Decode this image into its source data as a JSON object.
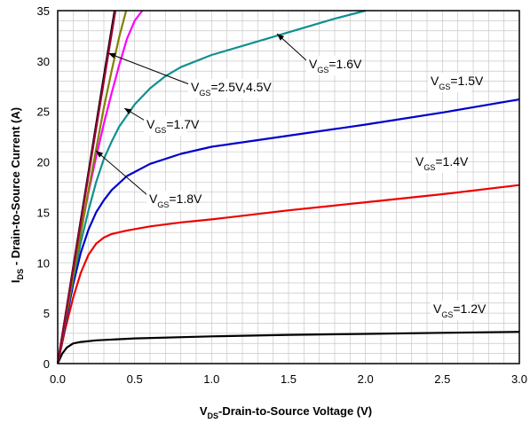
{
  "chart_data": {
    "type": "line",
    "title": "",
    "xlabel_main": "V",
    "xlabel_sub": "DS",
    "xlabel_rest": "-Drain-to-Source Voltage (V)",
    "ylabel_main": "I",
    "ylabel_sub": "DS",
    "ylabel_rest": " - Drain-to-Source Current (A)",
    "xlim": [
      0,
      3.0
    ],
    "ylim": [
      0,
      35
    ],
    "xticks": [
      "0.0",
      "0.5",
      "1.0",
      "1.5",
      "2.0",
      "2.5",
      "3.0"
    ],
    "xtick_values": [
      0,
      0.5,
      1.0,
      1.5,
      2.0,
      2.5,
      3.0
    ],
    "yticks": [
      "0",
      "5",
      "10",
      "15",
      "20",
      "25",
      "30",
      "35"
    ],
    "ytick_values": [
      0,
      5,
      10,
      15,
      20,
      25,
      30,
      35
    ],
    "grid": true,
    "series": [
      {
        "name": "VGS=1.2V",
        "color": "#000000",
        "x": [
          0,
          0.03,
          0.06,
          0.1,
          0.15,
          0.25,
          0.5,
          1.0,
          1.5,
          2.0,
          2.5,
          3.0
        ],
        "y": [
          0,
          1.0,
          1.6,
          2.0,
          2.15,
          2.3,
          2.5,
          2.7,
          2.85,
          2.95,
          3.05,
          3.15
        ]
      },
      {
        "name": "VGS=1.4V",
        "color": "#ee0000",
        "x": [
          0,
          0.05,
          0.1,
          0.15,
          0.2,
          0.25,
          0.3,
          0.35,
          0.45,
          0.6,
          0.8,
          1.0,
          1.5,
          2.0,
          2.5,
          3.0
        ],
        "y": [
          0,
          3.5,
          6.5,
          9.0,
          10.8,
          11.9,
          12.5,
          12.85,
          13.2,
          13.6,
          14.0,
          14.3,
          15.2,
          16.0,
          16.8,
          17.7
        ]
      },
      {
        "name": "VGS=1.5V",
        "color": "#0000cc",
        "x": [
          0,
          0.05,
          0.1,
          0.15,
          0.2,
          0.25,
          0.3,
          0.35,
          0.45,
          0.6,
          0.8,
          1.0,
          1.5,
          2.0,
          2.5,
          3.0
        ],
        "y": [
          0,
          4.0,
          7.8,
          11.0,
          13.3,
          15.0,
          16.2,
          17.2,
          18.6,
          19.8,
          20.8,
          21.5,
          22.6,
          23.7,
          24.9,
          26.2
        ]
      },
      {
        "name": "VGS=1.6V",
        "color": "#109090",
        "x": [
          0,
          0.05,
          0.1,
          0.15,
          0.2,
          0.25,
          0.3,
          0.35,
          0.4,
          0.5,
          0.6,
          0.7,
          0.8,
          1.0,
          1.2,
          1.4,
          1.6,
          1.8,
          2.0
        ],
        "y": [
          0,
          4.3,
          8.3,
          12.0,
          15.2,
          18.0,
          20.3,
          22.0,
          23.5,
          25.7,
          27.3,
          28.5,
          29.4,
          30.6,
          31.5,
          32.4,
          33.3,
          34.2,
          35.0
        ]
      },
      {
        "name": "VGS=1.7V",
        "color": "#ff00ff",
        "x": [
          0,
          0.05,
          0.1,
          0.15,
          0.2,
          0.25,
          0.3,
          0.35,
          0.4,
          0.45,
          0.5,
          0.55
        ],
        "y": [
          0,
          4.4,
          8.8,
          13.0,
          17.0,
          20.5,
          23.8,
          26.8,
          29.6,
          32.2,
          34.0,
          35.0
        ]
      },
      {
        "name": "VGS=1.8V",
        "color": "#808000",
        "x": [
          0,
          0.1,
          0.2,
          0.3,
          0.35,
          0.4,
          0.445
        ],
        "y": [
          0,
          8.6,
          17.2,
          25.4,
          29.0,
          32.4,
          35.0
        ]
      },
      {
        "name": "VGS=2.5V",
        "color": "#000000",
        "x": [
          0,
          0.1,
          0.2,
          0.3,
          0.37
        ],
        "y": [
          0,
          9.5,
          19.0,
          28.5,
          35.0
        ]
      },
      {
        "name": "VGS=4.5V",
        "color": "#990033",
        "x": [
          0,
          0.1,
          0.2,
          0.3,
          0.375
        ],
        "y": [
          0,
          9.3,
          18.7,
          28.0,
          35.0
        ]
      }
    ],
    "annotations": [
      {
        "pre": "V",
        "sub": "GS",
        "post": "=1.6V"
      },
      {
        "pre": "V",
        "sub": "GS",
        "post": "=2.5V,4.5V"
      },
      {
        "pre": "V",
        "sub": "GS",
        "post": "=1.5V"
      },
      {
        "pre": "V",
        "sub": "GS",
        "post": "=1.7V"
      },
      {
        "pre": "V",
        "sub": "GS",
        "post": "=1.4V"
      },
      {
        "pre": "V",
        "sub": "GS",
        "post": "=1.8V"
      },
      {
        "pre": "V",
        "sub": "GS",
        "post": "=1.2V"
      }
    ]
  }
}
